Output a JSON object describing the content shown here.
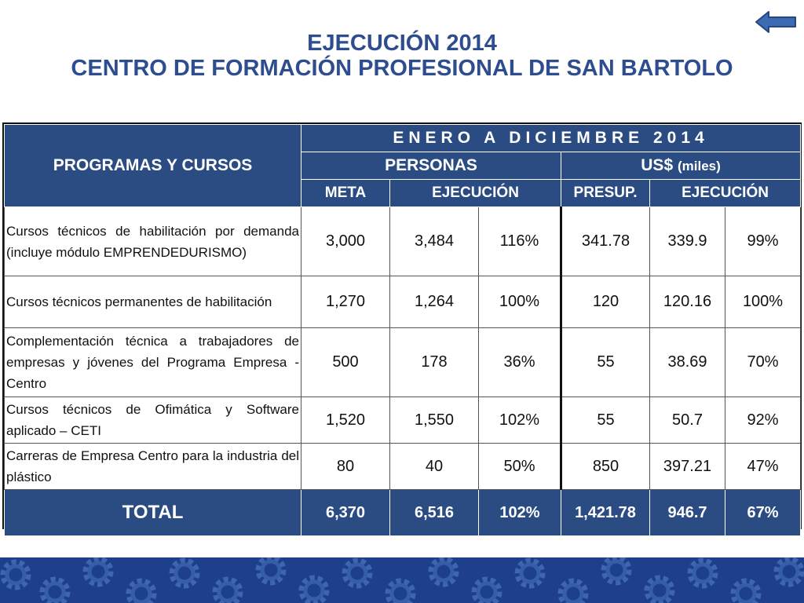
{
  "title": {
    "line1": "EJECUCIÓN 2014",
    "line2": "CENTRO DE FORMACIÓN PROFESIONAL DE SAN BARTOLO"
  },
  "nav": {
    "back_icon": "arrow-left-icon"
  },
  "table": {
    "header": {
      "programs": "PROGRAMAS Y CURSOS",
      "period": "ENERO A DICIEMBRE 2014",
      "personas": "PERSONAS",
      "usd": "US$",
      "usd_unit": "(miles)",
      "meta": "META",
      "ejecucion_personas": "EJECUCIÓN",
      "presup": "PRESUP.",
      "ejecucion_usd": "EJECUCIÓN"
    },
    "rows": [
      {
        "desc": "Cursos técnicos de habilitación por demanda (incluye módulo EMPRENDEDURISMO)",
        "meta": "3,000",
        "ejec": "3,484",
        "pct": "116%",
        "presup": "341.78",
        "ejec_usd": "339.9",
        "pct_usd": "99%"
      },
      {
        "desc": "Cursos técnicos permanentes de habilitación",
        "meta": "1,270",
        "ejec": "1,264",
        "pct": "100%",
        "presup": "120",
        "ejec_usd": "120.16",
        "pct_usd": "100%"
      },
      {
        "desc": "Complementación técnica a trabajadores de empresas y jóvenes del Programa Empresa - Centro",
        "meta": "500",
        "ejec": "178",
        "pct": "36%",
        "presup": "55",
        "ejec_usd": "38.69",
        "pct_usd": "70%"
      },
      {
        "desc": "Cursos técnicos de Ofimática y Software aplicado – CETI",
        "meta": "1,520",
        "ejec": "1,550",
        "pct": "102%",
        "presup": "55",
        "ejec_usd": "50.7",
        "pct_usd": "92%"
      },
      {
        "desc": "Carreras de Empresa Centro para la industria del plástico",
        "meta": "80",
        "ejec": "40",
        "pct": "50%",
        "presup": "850",
        "ejec_usd": "397.21",
        "pct_usd": "47%"
      }
    ],
    "total": {
      "label": "TOTAL",
      "meta": "6,370",
      "ejec": "6,516",
      "pct": "102%",
      "presup": "1,421.78",
      "ejec_usd": "946.7",
      "pct_usd": "67%"
    }
  },
  "colors": {
    "title": "#2e4d8f",
    "header_bg": "#2a4c83",
    "band": "#1e3f8c"
  }
}
